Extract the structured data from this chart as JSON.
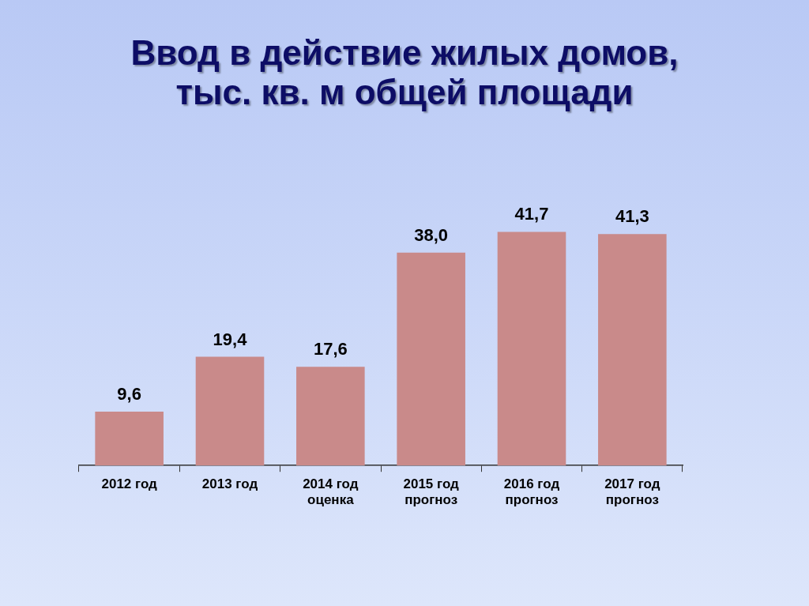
{
  "chart_data": {
    "type": "bar",
    "title": "Ввод в действие жилых домов, тыс. кв. м общей площади",
    "categories": [
      "2012 год",
      "2013 год",
      "2014 год\nоценка",
      "2015 год\nпрогноз",
      "2016 год\nпрогноз",
      "2017 год\nпрогноз"
    ],
    "values": [
      9.6,
      19.4,
      17.6,
      38.0,
      41.7,
      41.3
    ],
    "value_labels": [
      "9,6",
      "19,4",
      "17,6",
      "38,0",
      "41,7",
      "41,3"
    ],
    "color": "#c98a8a"
  }
}
